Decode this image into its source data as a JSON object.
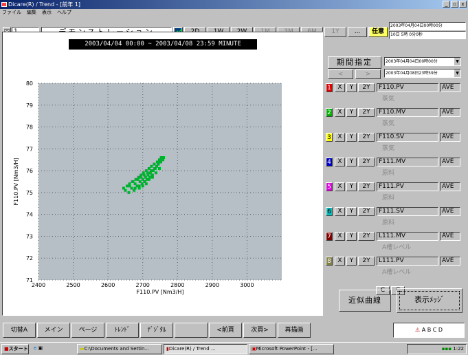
{
  "window": {
    "title": "Dicare(R) / Trend - [前年 1]",
    "minimize": "_",
    "maximize": "▫",
    "close": "x"
  },
  "menu": [
    "ファイル",
    "編集",
    "表示",
    "ヘルプ"
  ],
  "toolbar": {
    "screen_no": "1",
    "screen_title": "デモンストレーション",
    "ranges": [
      "2D",
      "1W",
      "2W",
      "1M",
      "3M",
      "6M",
      "1Y",
      "..."
    ],
    "custom_label": "任意",
    "custom_line1": "2003年04月04日00時00分",
    "custom_line2": "10日 5時 0分0秒"
  },
  "chart_header": {
    "range_text": "2003/04/04 00:00 ~ 2003/04/08 23:59  MINUTE"
  },
  "right_panel": {
    "period_button": "期間指定",
    "prev": "<",
    "next": ">",
    "date_from": "2003年04月04日00時00分",
    "date_to": "2003年04月08日23時59分",
    "channels": [
      {
        "num": "1",
        "color": "#e00000",
        "x": "X",
        "y": "Y",
        "y2": "2Y",
        "tag": "F110.PV",
        "mode": "AVE",
        "desc": "蒸気"
      },
      {
        "num": "2",
        "color": "#00b000",
        "x": "X",
        "y": "Y",
        "y2": "2Y",
        "tag": "F110.MV",
        "mode": "AVE",
        "desc": "蒸気"
      },
      {
        "num": "3",
        "color": "#ffff00",
        "x": "X",
        "y": "Y",
        "y2": "2Y",
        "tag": "F110.SV",
        "mode": "AVE",
        "desc": "蒸気"
      },
      {
        "num": "4",
        "color": "#0000c0",
        "x": "X",
        "y": "Y",
        "y2": "2Y",
        "tag": "F111.MV",
        "mode": "AVE",
        "desc": "原料"
      },
      {
        "num": "5",
        "color": "#e000e0",
        "x": "X",
        "y": "Y",
        "y2": "2Y",
        "tag": "F111.PV",
        "mode": "AVE",
        "desc": "原料"
      },
      {
        "num": "6",
        "color": "#00c0c0",
        "x": "X",
        "y": "Y",
        "y2": "2Y",
        "tag": "F111.SV",
        "mode": "AVE",
        "desc": "原料"
      },
      {
        "num": "7",
        "color": "#800000",
        "x": "X",
        "y": "Y",
        "y2": "2Y",
        "tag": "L111.MV",
        "mode": "AVE",
        "desc": "A槽レベル"
      },
      {
        "num": "8",
        "color": "#808040",
        "x": "X",
        "y": "Y",
        "y2": "2Y",
        "tag": "L111.PV",
        "mode": "AVE",
        "desc": "A槽レベル"
      }
    ],
    "c1": "C",
    "c2": "C",
    "approx_button": "近似曲線",
    "display_button": "表示ﾒｯｼﾞ"
  },
  "bottom_bar": {
    "buttons": [
      "切替A",
      "メイン",
      "ページ",
      "ﾄﾚﾝﾄﾞ",
      "ﾃﾞｼﾞﾀﾙ",
      "",
      "<前頁",
      "次頁>",
      "再描画"
    ],
    "status": "A B C D"
  },
  "taskbar": {
    "start": "スタート",
    "tasks": [
      "C:\\Documents and Settin...",
      "Dicare(R) / Trend ...",
      "Microsoft PowerPoint - [..."
    ],
    "clock": "1:22"
  },
  "colors": {
    "plot_bg": "#b6bfc6",
    "points": "#00b030",
    "accent": "#ffff66"
  },
  "chart_data": {
    "type": "scatter",
    "xlabel": "F110.PV [Nm3/H]",
    "ylabel": "F110.PV [Nm3/H]",
    "xlim": [
      2400,
      3100
    ],
    "ylim": [
      71,
      80
    ],
    "x_ticks": [
      "2400",
      "2500",
      "2600",
      "2700",
      "2800",
      "2900",
      "3000"
    ],
    "y_ticks": [
      "71",
      "72",
      "73",
      "74",
      "75",
      "76",
      "77",
      "78",
      "79",
      "80"
    ],
    "grid": true,
    "series": [
      {
        "x": [
          2645,
          2650,
          2655,
          2660,
          2662,
          2668,
          2670,
          2675,
          2678,
          2680,
          2684,
          2688,
          2690,
          2692,
          2695,
          2698,
          2700,
          2702,
          2705,
          2708,
          2710,
          2712,
          2715,
          2718,
          2720,
          2722,
          2725,
          2728,
          2730,
          2733,
          2736,
          2740,
          2742,
          2745,
          2748,
          2750,
          2753,
          2756,
          2760,
          2662,
          2672,
          2686,
          2694,
          2704,
          2714,
          2724,
          2734,
          2744,
          2752,
          2758,
          2700,
          2710,
          2718,
          2728,
          2738,
          2748,
          2678,
          2690,
          2706,
          2726
        ],
        "y": [
          75.2,
          75.1,
          75.3,
          75.0,
          75.4,
          75.2,
          75.5,
          75.1,
          75.4,
          75.6,
          75.3,
          75.7,
          75.2,
          75.5,
          75.8,
          75.4,
          75.6,
          75.9,
          75.5,
          75.7,
          76.0,
          75.6,
          75.8,
          76.1,
          75.7,
          75.9,
          76.2,
          75.8,
          76.0,
          76.3,
          76.1,
          76.2,
          76.4,
          76.3,
          76.5,
          76.4,
          76.6,
          76.5,
          76.6,
          75.3,
          75.5,
          75.6,
          75.7,
          75.8,
          75.9,
          76.0,
          76.1,
          76.3,
          76.4,
          76.5,
          75.3,
          75.4,
          75.6,
          75.7,
          75.9,
          76.1,
          75.2,
          75.3,
          75.5,
          75.8
        ]
      }
    ]
  }
}
